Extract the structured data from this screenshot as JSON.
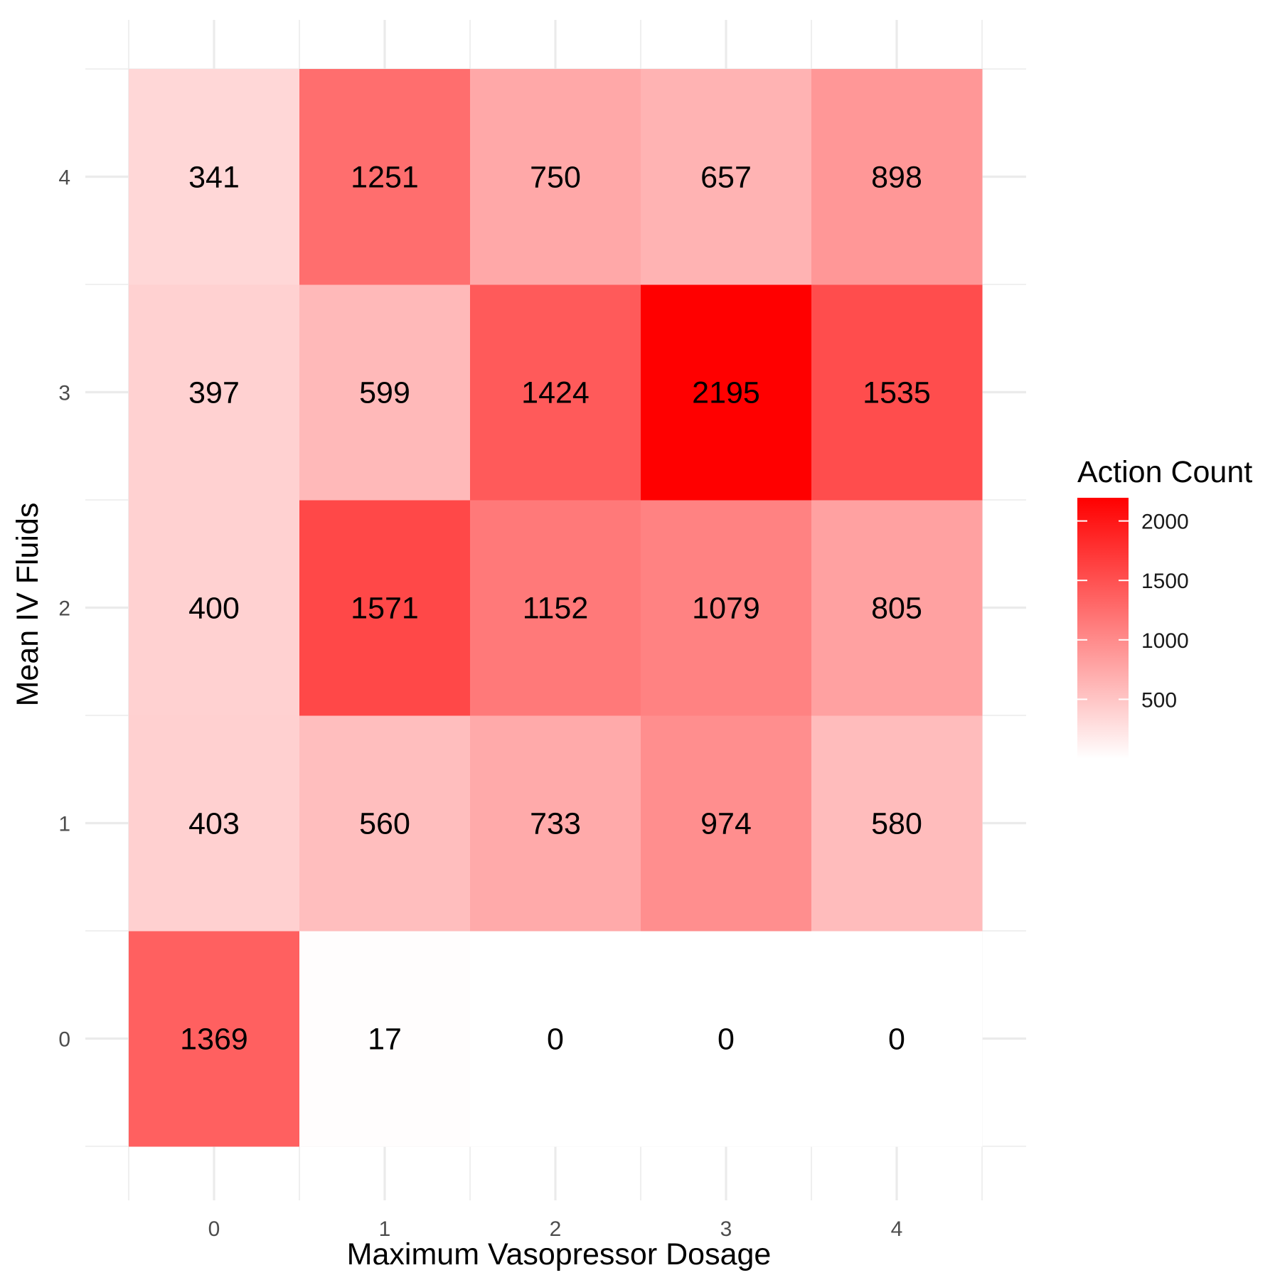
{
  "chart_data": {
    "type": "heatmap",
    "xlabel": "Maximum Vasopressor Dosage",
    "ylabel": "Mean IV Fluids",
    "x_categories": [
      "0",
      "1",
      "2",
      "3",
      "4"
    ],
    "y_categories": [
      "0",
      "1",
      "2",
      "3",
      "4"
    ],
    "values": [
      [
        1369,
        17,
        0,
        0,
        0
      ],
      [
        403,
        560,
        733,
        974,
        580
      ],
      [
        400,
        1571,
        1152,
        1079,
        805
      ],
      [
        397,
        599,
        1424,
        2195,
        1535
      ],
      [
        341,
        1251,
        750,
        657,
        898
      ]
    ],
    "legend": {
      "title": "Action Count",
      "ticks": [
        "500",
        "1000",
        "1500",
        "2000"
      ],
      "range": [
        0,
        2195
      ]
    },
    "color_low": "#ffffff",
    "color_high": "#ff0000",
    "grid": true
  }
}
